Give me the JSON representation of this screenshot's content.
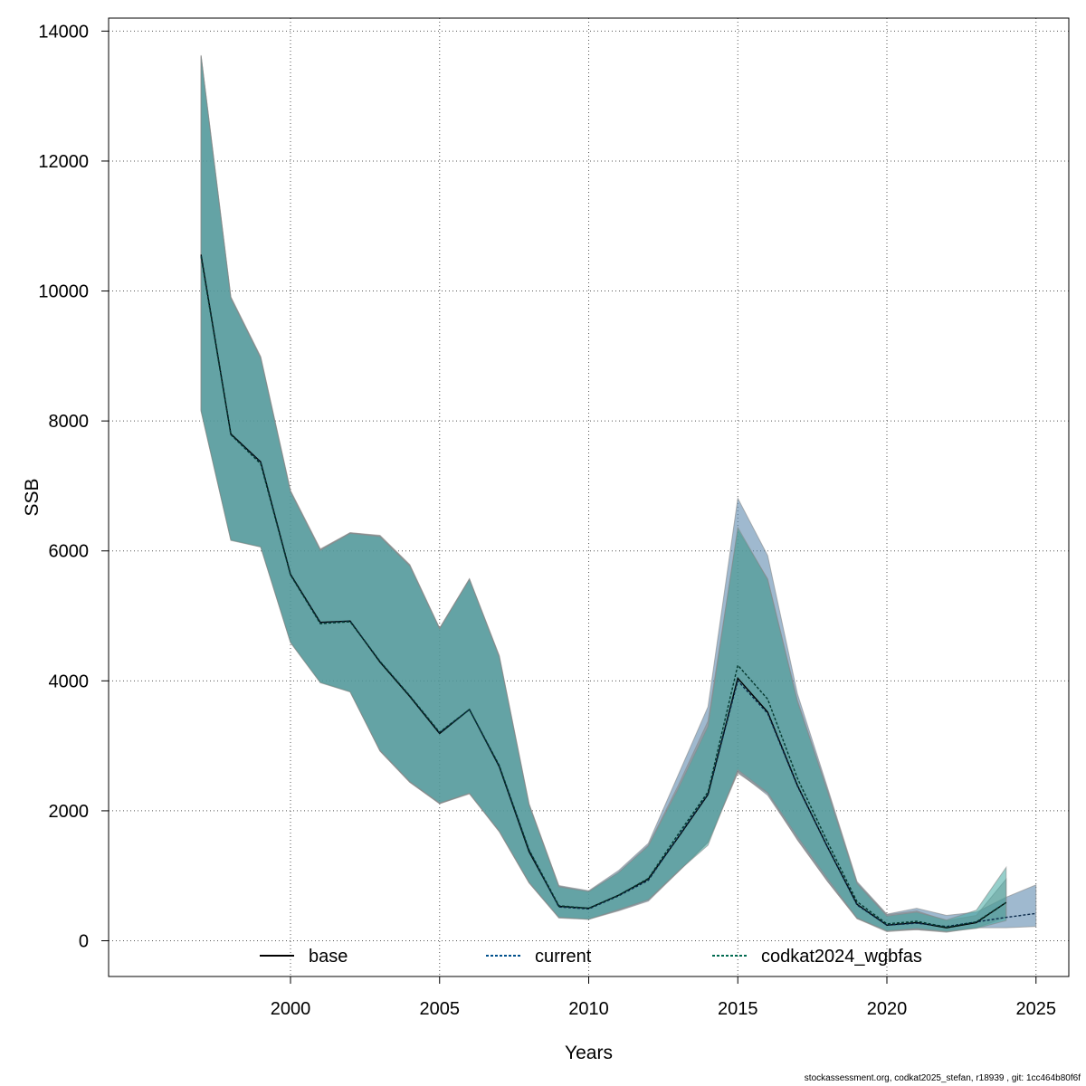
{
  "chart_data": {
    "type": "line",
    "title": "",
    "xlabel": "Years",
    "ylabel": "SSB",
    "xlim": [
      1993.9,
      2026.1
    ],
    "ylim": [
      -550,
      14200
    ],
    "x_ticks": [
      2000,
      2005,
      2010,
      2015,
      2020,
      2025
    ],
    "y_ticks": [
      0,
      2000,
      4000,
      6000,
      8000,
      10000,
      12000,
      14000
    ],
    "grid": true,
    "legend_position": "bottom",
    "series": [
      {
        "name": "base",
        "color": "#000000",
        "band_color": "#7f7f7f",
        "line_style": "solid",
        "x": [
          1997,
          1998,
          1999,
          2000,
          2001,
          2002,
          2003,
          2004,
          2005,
          2006,
          2007,
          2008,
          2009,
          2010,
          2011,
          2012,
          2013,
          2014,
          2015,
          2016,
          2017,
          2018,
          2019,
          2020,
          2021,
          2022,
          2023,
          2024
        ],
        "values": [
          10560,
          7800,
          7370,
          5640,
          4900,
          4920,
          4290,
          3760,
          3190,
          3560,
          2680,
          1370,
          530,
          500,
          700,
          950,
          1590,
          2250,
          4040,
          3520,
          2390,
          1450,
          560,
          240,
          280,
          200,
          280,
          590
        ],
        "lower": [
          8170,
          6170,
          6070,
          4600,
          3980,
          3840,
          2920,
          2440,
          2110,
          2260,
          1680,
          890,
          360,
          340,
          470,
          630,
          1060,
          1510,
          2580,
          2270,
          1550,
          920,
          340,
          140,
          170,
          130,
          200,
          360
        ],
        "upper": [
          13630,
          9910,
          8990,
          6930,
          6030,
          6280,
          6240,
          5790,
          4810,
          5570,
          4380,
          2100,
          840,
          750,
          1050,
          1470,
          2390,
          3380,
          6320,
          5570,
          3700,
          2330,
          890,
          400,
          460,
          310,
          390,
          950
        ]
      },
      {
        "name": "current",
        "color": "#00508c",
        "band_color": "#5080a8",
        "line_style": "dashed",
        "x": [
          1997,
          1998,
          1999,
          2000,
          2001,
          2002,
          2003,
          2004,
          2005,
          2006,
          2007,
          2008,
          2009,
          2010,
          2011,
          2012,
          2013,
          2014,
          2015,
          2016,
          2017,
          2018,
          2019,
          2020,
          2021,
          2022,
          2023,
          2024,
          2025
        ],
        "values": [
          10540,
          7790,
          7360,
          5630,
          4890,
          4920,
          4300,
          3770,
          3200,
          3560,
          2690,
          1390,
          520,
          490,
          690,
          930,
          1600,
          2260,
          4000,
          3500,
          2380,
          1450,
          550,
          240,
          270,
          220,
          290,
          360,
          420
        ],
        "lower": [
          8160,
          6170,
          6060,
          4590,
          3980,
          3830,
          2920,
          2440,
          2110,
          2270,
          1680,
          890,
          350,
          330,
          460,
          610,
          1060,
          1520,
          2600,
          2240,
          1560,
          920,
          340,
          160,
          170,
          150,
          200,
          200,
          220
        ],
        "upper": [
          13620,
          9900,
          8980,
          6920,
          6020,
          6280,
          6230,
          5780,
          4810,
          5570,
          4390,
          2110,
          850,
          770,
          1080,
          1500,
          2550,
          3600,
          6810,
          5930,
          3800,
          2370,
          910,
          410,
          500,
          390,
          440,
          670,
          860
        ]
      },
      {
        "name": "codkat2024_wgbfas",
        "color": "#009070",
        "band_color": "#40a8a0",
        "line_style": "dashed",
        "x": [
          1997,
          1998,
          1999,
          2000,
          2001,
          2002,
          2003,
          2004,
          2005,
          2006,
          2007,
          2008,
          2009,
          2010,
          2011,
          2012,
          2013,
          2014,
          2015,
          2016,
          2017,
          2018,
          2019,
          2020,
          2021,
          2022,
          2023,
          2024
        ],
        "values": [
          10530,
          7790,
          7340,
          5630,
          4880,
          4910,
          4300,
          3770,
          3210,
          3560,
          2700,
          1400,
          540,
          500,
          700,
          960,
          1640,
          2290,
          4240,
          3720,
          2500,
          1530,
          600,
          260,
          300,
          210,
          290,
          590
        ],
        "lower": [
          8150,
          6160,
          6060,
          4590,
          3970,
          3830,
          2930,
          2450,
          2120,
          2270,
          1690,
          900,
          360,
          330,
          480,
          630,
          1070,
          1470,
          2630,
          2280,
          1600,
          960,
          350,
          150,
          190,
          140,
          190,
          310
        ],
        "upper": [
          13610,
          9890,
          8970,
          6910,
          6010,
          6270,
          6220,
          5770,
          4800,
          5560,
          4370,
          2090,
          830,
          760,
          1050,
          1460,
          2340,
          3300,
          6360,
          5560,
          3680,
          2310,
          880,
          380,
          440,
          320,
          470,
          1130
        ]
      }
    ]
  },
  "footer": "stockassessment.org, codkat2025_stefan, r18939 , git: 1cc464b80f6f"
}
